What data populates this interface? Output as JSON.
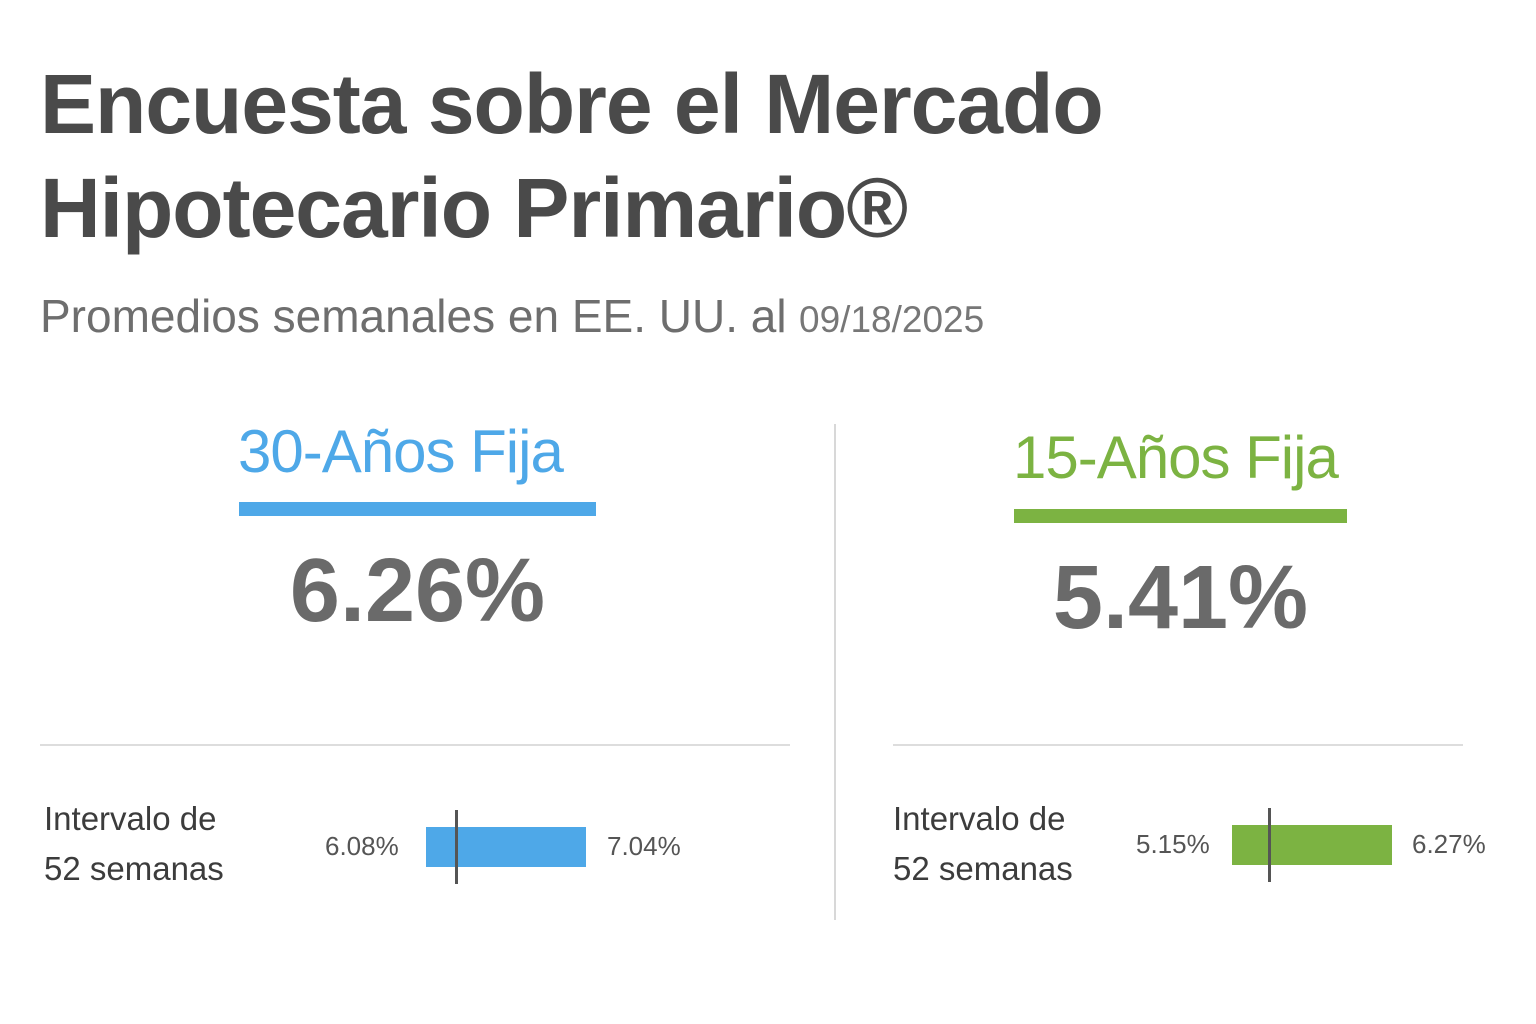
{
  "header": {
    "title_line1": "Encuesta sobre el Mercado",
    "title_line2": "Hipotecario Primario®",
    "subtitle": "Promedios semanales en EE. UU. al",
    "date": "09/18/2025"
  },
  "colors": {
    "fixed_30_accent": "#4ea8e8",
    "fixed_15_accent": "#7cb342",
    "title_text": "#4a4a4a",
    "rate_text": "#6a6a6a"
  },
  "products": [
    {
      "label": "30-Años Fija",
      "rate": "6.26%",
      "rate_value": 6.26,
      "interval_label_line1": "Intervalo de",
      "interval_label_line2": "52 semanas",
      "low": "6.08%",
      "high": "7.04%",
      "low_value": 6.08,
      "high_value": 7.04
    },
    {
      "label": "15-Años Fija",
      "rate": "5.41%",
      "rate_value": 5.41,
      "interval_label_line1": "Intervalo de",
      "interval_label_line2": "52 semanas",
      "low": "5.15%",
      "high": "6.27%",
      "low_value": 5.15,
      "high_value": 6.27
    }
  ]
}
